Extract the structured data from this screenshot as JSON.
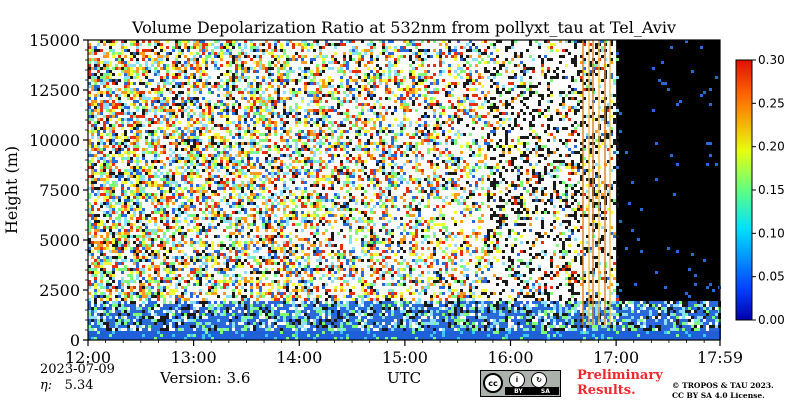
{
  "chart_data": {
    "type": "heatmap",
    "title": "Volume Depolarization Ratio at 532nm from pollyxt_tau at Tel_Aviv",
    "xlabel": "UTC",
    "ylabel": "Height (m)",
    "xlim": [
      "12:00",
      "17:59"
    ],
    "ylim": [
      0,
      15000
    ],
    "x_ticks": [
      "12:00",
      "13:00",
      "14:00",
      "15:00",
      "16:00",
      "17:00",
      "17:59"
    ],
    "y_ticks": [
      0,
      2500,
      5000,
      7500,
      10000,
      12500,
      15000
    ],
    "colorbar": {
      "range": [
        0.0,
        0.3
      ],
      "ticks": [
        "0.00",
        "0.05",
        "0.10",
        "0.15",
        "0.20",
        "0.25",
        "0.30"
      ],
      "colormap": "jet"
    },
    "colors": {
      "aerosol_layer": "#1f5fd8",
      "no_data": "#000000",
      "noise_background": "#ffffff"
    },
    "features": {
      "aerosol_layer_top_m": 2000,
      "dense_layer_top_m": 600,
      "dark_region_start": "17:00"
    }
  },
  "footer": {
    "date": "2023-07-09",
    "eta_label": "η:",
    "eta_value": "5.34",
    "version": "Version: 3.6",
    "license_labels": [
      "BY",
      "SA"
    ],
    "preliminary_line1": "Preliminary",
    "preliminary_line2": "Results.",
    "copyright_line1": "© TROPOS & TAU 2023.",
    "copyright_line2": "CC BY SA 4.0 License."
  }
}
